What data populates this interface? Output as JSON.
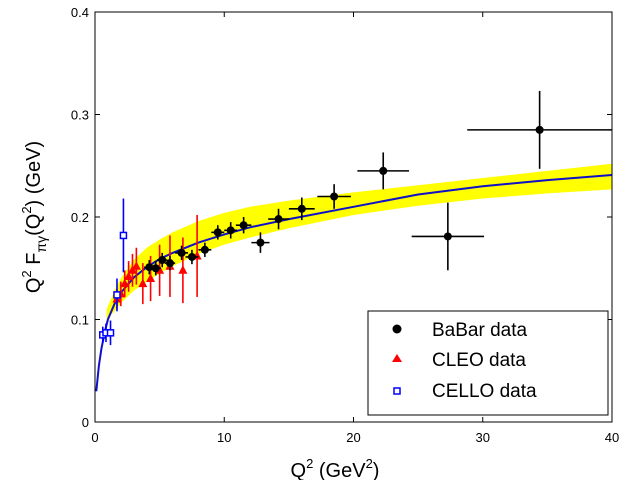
{
  "chart_data": {
    "type": "scatter",
    "title": "",
    "xlabel": {
      "base": "Q",
      "sup1": "2",
      "text": " (GeV",
      "sup2": "2",
      "close": ")"
    },
    "ylabel": {
      "q": "Q",
      "sup1": "2",
      "f": " F",
      "sub": "πγ",
      "open": "(Q",
      "sup2": "2",
      "close": ") (GeV)"
    },
    "xlim": [
      0,
      40
    ],
    "ylim": [
      0,
      0.4
    ],
    "xticks": [
      "0",
      "10",
      "20",
      "30",
      "40"
    ],
    "yticks": [
      "0",
      "0.1",
      "0.2",
      "0.3",
      "0.4"
    ],
    "xtick_values": [
      0,
      10,
      20,
      30,
      40
    ],
    "ytick_values": [
      0,
      0.1,
      0.2,
      0.3,
      0.4
    ],
    "grid": false,
    "legend_position": "bottom-right",
    "band": {
      "color": "#ffff00",
      "x": [
        0.9,
        1.5,
        2,
        3,
        4,
        5,
        6,
        8,
        10,
        12,
        15,
        20,
        25,
        30,
        35,
        40
      ],
      "lower": [
        0.1,
        0.108,
        0.116,
        0.128,
        0.137,
        0.145,
        0.152,
        0.164,
        0.173,
        0.18,
        0.189,
        0.202,
        0.211,
        0.218,
        0.223,
        0.227
      ],
      "upper": [
        0.11,
        0.128,
        0.14,
        0.158,
        0.17,
        0.178,
        0.185,
        0.196,
        0.204,
        0.21,
        0.216,
        0.224,
        0.231,
        0.238,
        0.245,
        0.252
      ]
    },
    "curve": {
      "color": "#1010c8",
      "x": [
        0.1,
        0.3,
        0.5,
        0.8,
        1,
        1.5,
        2,
        3,
        4,
        5,
        6,
        8,
        10,
        12,
        15,
        20,
        25,
        30,
        35,
        40
      ],
      "y": [
        0.03,
        0.055,
        0.072,
        0.09,
        0.1,
        0.115,
        0.126,
        0.141,
        0.151,
        0.159,
        0.165,
        0.175,
        0.183,
        0.19,
        0.198,
        0.21,
        0.222,
        0.23,
        0.236,
        0.241
      ]
    },
    "series": [
      {
        "name": "BaBar data",
        "marker": "circle",
        "color": "#000000",
        "points": [
          {
            "x": 4.2,
            "y": 0.151,
            "xerr": 0.4,
            "yerr": 0.007
          },
          {
            "x": 4.7,
            "y": 0.15,
            "xerr": 0.4,
            "yerr": 0.007
          },
          {
            "x": 5.2,
            "y": 0.158,
            "xerr": 0.4,
            "yerr": 0.007
          },
          {
            "x": 5.8,
            "y": 0.155,
            "xerr": 0.4,
            "yerr": 0.007
          },
          {
            "x": 6.7,
            "y": 0.165,
            "xerr": 0.5,
            "yerr": 0.007
          },
          {
            "x": 7.5,
            "y": 0.161,
            "xerr": 0.5,
            "yerr": 0.007
          },
          {
            "x": 8.5,
            "y": 0.168,
            "xerr": 0.5,
            "yerr": 0.007
          },
          {
            "x": 9.5,
            "y": 0.185,
            "xerr": 0.5,
            "yerr": 0.007
          },
          {
            "x": 10.5,
            "y": 0.187,
            "xerr": 0.5,
            "yerr": 0.008
          },
          {
            "x": 11.5,
            "y": 0.192,
            "xerr": 0.6,
            "yerr": 0.008
          },
          {
            "x": 12.8,
            "y": 0.175,
            "xerr": 0.7,
            "yerr": 0.01
          },
          {
            "x": 14.2,
            "y": 0.198,
            "xerr": 0.8,
            "yerr": 0.01
          },
          {
            "x": 16.0,
            "y": 0.208,
            "xerr": 1.0,
            "yerr": 0.011
          },
          {
            "x": 18.5,
            "y": 0.22,
            "xerr": 1.3,
            "yerr": 0.012
          },
          {
            "x": 22.3,
            "y": 0.245,
            "xerr": 2.0,
            "yerr": 0.018
          },
          {
            "x": 27.3,
            "y": 0.181,
            "xerr": 2.8,
            "yerr": 0.033
          },
          {
            "x": 34.4,
            "y": 0.285,
            "xerr": 5.6,
            "yerr": 0.038
          }
        ]
      },
      {
        "name": "CLEO data",
        "marker": "triangle",
        "color": "#ff0000",
        "points": [
          {
            "x": 1.7,
            "y": 0.12,
            "yerr": 0.01
          },
          {
            "x": 2.0,
            "y": 0.125,
            "yerr": 0.012
          },
          {
            "x": 2.3,
            "y": 0.135,
            "yerr": 0.013
          },
          {
            "x": 2.6,
            "y": 0.142,
            "yerr": 0.015
          },
          {
            "x": 2.9,
            "y": 0.148,
            "yerr": 0.016
          },
          {
            "x": 3.2,
            "y": 0.152,
            "yerr": 0.018
          },
          {
            "x": 3.7,
            "y": 0.135,
            "yerr": 0.02
          },
          {
            "x": 4.3,
            "y": 0.14,
            "yerr": 0.022
          },
          {
            "x": 5.0,
            "y": 0.148,
            "yerr": 0.025
          },
          {
            "x": 5.8,
            "y": 0.152,
            "yerr": 0.03
          },
          {
            "x": 6.8,
            "y": 0.148,
            "yerr": 0.032
          },
          {
            "x": 7.9,
            "y": 0.162,
            "yerr": 0.04
          }
        ]
      },
      {
        "name": "CELLO data",
        "marker": "square-open",
        "color": "#0000ff",
        "points": [
          {
            "x": 0.6,
            "y": 0.085,
            "yerr": 0.008
          },
          {
            "x": 0.85,
            "y": 0.087,
            "yerr": 0.009
          },
          {
            "x": 1.2,
            "y": 0.087,
            "yerr": 0.012
          },
          {
            "x": 1.7,
            "y": 0.124,
            "yerr": 0.016
          },
          {
            "x": 2.2,
            "y": 0.182,
            "yerr": 0.036
          }
        ]
      }
    ]
  }
}
